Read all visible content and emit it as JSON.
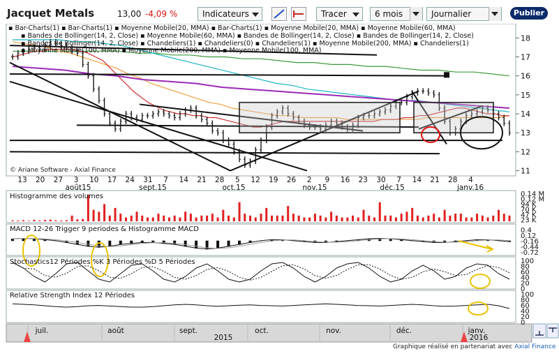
{
  "header": {
    "title": "Jacquet Metals",
    "price": "13,00",
    "change": "-4,09 %",
    "indicators_label": "Indicateurs",
    "tracer_label": "Tracer",
    "period_value": "6 mois",
    "frequency_value": "Journalier",
    "publish_label": "Publier"
  },
  "legend": {
    "line1": [
      "Bar-Charts(1)",
      "Bar-Charts(1)",
      "Moyenne Mobile(20, MMA)",
      "Bar-Charts(1)",
      "Moyenne Mobile(20, MMA)",
      "Moyenne Mobile(60, MMA)"
    ],
    "line2": [
      "Bandes de Bollinger(14, 2, Close)",
      "Moyenne Mobile(60, MMA)",
      "Bandes de Bollinger(14, 2, Close)",
      "Bandes de Bollinger(14, 2, Close)"
    ],
    "line3": [
      "Bandes de Bollinger(14, 2, Close)",
      "Chandeliers(1)",
      "Chandeliers(0)",
      "Chandeliers(1)",
      "Moyenne Mobile(200, MMA)",
      "Chandeliers(1)"
    ],
    "line4": [
      "Moyenne Mobile(100, MMA)",
      "Moyenne Mobile(200, MMA)",
      "Moyenne Mobile(100, MMA)"
    ]
  },
  "copyright": "© Ariane Software - Axial Finance",
  "panels": {
    "volume": "Histogramme des volumes",
    "macd": "MACD 12-26   Trigger 9 periodes & Histogramme MACD",
    "stoch": "Stochastics12 Périodes   %K 3 Périodes   %D 5 Périodes",
    "rsi": "Relative Strength Index 12 Périodes"
  },
  "footer": {
    "text": "Graphique réalisé en partenariat avec ",
    "brand": "Axial Finance"
  },
  "chart_data": {
    "type": "bar",
    "price_axis": {
      "ylim": [
        10.8,
        18.6
      ],
      "ticks": [
        11,
        12,
        13,
        14,
        15,
        16,
        17,
        18
      ]
    },
    "x_day_labels": [
      "13",
      "20",
      "27",
      "3",
      "10",
      "17",
      "24",
      "31",
      "7",
      "14",
      "21",
      "28",
      "5",
      "12",
      "19",
      "26",
      "2",
      "9",
      "16",
      "23",
      "30",
      "7",
      "14",
      "21",
      "28",
      "4"
    ],
    "x_month_labels": [
      "août15",
      "sept.15",
      "oct.15",
      "nov.15",
      "déc.15",
      "janv.16"
    ],
    "volume_axis_labels": [
      "0.14 M",
      "0.12 M",
      "94 K",
      "70 K",
      "47 K",
      "23 K"
    ],
    "macd_axis_labels": [
      "0.4",
      "0.12",
      "-0.16",
      "-0.44",
      "-0.72"
    ],
    "stoch_axis_labels": [
      "100",
      "80",
      "60",
      "40",
      "20",
      "0"
    ],
    "rsi_axis_labels": [
      "100",
      "80",
      "60",
      "40",
      "20",
      "0"
    ],
    "navigator_months": [
      "juil.",
      "août",
      "sept.",
      "oct.",
      "nov.",
      "déc.",
      "janv."
    ],
    "navigator_year": "2015",
    "navigator_year_right": "2016",
    "close": [
      17.0,
      17.2,
      17.3,
      17.4,
      17.5,
      17.4,
      17.6,
      17.8,
      17.7,
      17.6,
      17.5,
      17.3,
      17.2,
      16.6,
      16.0,
      15.3,
      14.7,
      14.0,
      13.5,
      13.2,
      13.6,
      14.0,
      13.8,
      13.7,
      13.9,
      13.9,
      14.0,
      14.1,
      14.0,
      13.9,
      13.8,
      14.0,
      14.2,
      14.3,
      13.9,
      13.7,
      13.5,
      13.1,
      13.0,
      12.6,
      12.4,
      12.0,
      11.6,
      11.3,
      11.5,
      12.1,
      12.6,
      13.3,
      13.9,
      14.1,
      14.3,
      14.0,
      13.8,
      13.6,
      13.4,
      13.3,
      13.3,
      13.2,
      13.4,
      13.6,
      13.5,
      13.3,
      13.2,
      13.4,
      13.8,
      13.9,
      13.9,
      14.0,
      14.1,
      14.2,
      14.4,
      14.6,
      14.6,
      14.9,
      15.1,
      15.2,
      15.2,
      15.1,
      15.0,
      14.3,
      13.6,
      13.0,
      13.2,
      13.6,
      13.9,
      14.0,
      14.1,
      14.3,
      14.2,
      14.0,
      13.8,
      13.5,
      13.0
    ],
    "volume": [
      0.005,
      0.004,
      0.006,
      0.003,
      0.008,
      0.004,
      0.007,
      0.009,
      0.005,
      0.004,
      0.006,
      0.03,
      0.01,
      0.012,
      0.14,
      0.06,
      0.05,
      0.09,
      0.03,
      0.07,
      0.04,
      0.02,
      0.03,
      0.05,
      0.03,
      0.02,
      0.02,
      0.04,
      0.03,
      0.02,
      0.03,
      0.02,
      0.05,
      0.04,
      0.02,
      0.03,
      0.03,
      0.04,
      0.02,
      0.06,
      0.03,
      0.02,
      0.1,
      0.04,
      0.03,
      0.02,
      0.04,
      0.07,
      0.03,
      0.03,
      0.03,
      0.08,
      0.04,
      0.03,
      0.02,
      0.02,
      0.04,
      0.03,
      0.02,
      0.05,
      0.03,
      0.02,
      0.02,
      0.03,
      0.02,
      0.06,
      0.03,
      0.02,
      0.1,
      0.03,
      0.03,
      0.02,
      0.04,
      0.05,
      0.07,
      0.03,
      0.02,
      0.03,
      0.04,
      0.02,
      0.06,
      0.03,
      0.04,
      0.04,
      0.02,
      0.02,
      0.04,
      0.03,
      0.02,
      0.03,
      0.06,
      0.04,
      0.03
    ],
    "ma20": [
      17.0,
      17.1,
      17.2,
      17.3,
      17.3,
      17.4,
      17.4,
      17.4,
      17.4,
      17.3,
      17.2,
      17.0,
      16.8,
      16.4,
      16.0,
      15.6,
      15.2,
      14.9,
      14.6,
      14.4,
      14.2,
      14.1,
      14.0,
      14.0,
      13.9,
      13.9,
      13.8,
      13.8,
      13.7,
      13.6,
      13.5,
      13.4,
      13.3,
      13.3,
      13.4,
      13.5,
      13.6,
      13.6,
      13.6,
      13.6,
      13.6,
      13.6,
      13.6,
      13.6,
      13.6,
      13.6,
      13.6,
      13.6,
      13.6,
      13.7,
      13.7,
      13.7,
      13.8,
      13.8,
      13.9,
      13.9,
      14.0,
      14.1,
      14.2,
      14.3,
      14.3,
      14.2,
      14.1,
      14.0,
      14.0,
      13.9,
      13.9
    ],
    "ma60": [
      17.8,
      17.7,
      17.6,
      17.5,
      17.3,
      17.2,
      17.0,
      16.8,
      16.6,
      16.4,
      16.1,
      15.9,
      15.6,
      15.4,
      15.2,
      15.0,
      14.8,
      14.6,
      14.5,
      14.3,
      14.2,
      14.1,
      14.0,
      13.9,
      13.9,
      13.8,
      13.8,
      13.8,
      13.8,
      13.7,
      13.7,
      13.7,
      13.7,
      13.7,
      13.7,
      13.7,
      13.8,
      13.8,
      13.8,
      13.8,
      13.8,
      13.8,
      13.8,
      13.9
    ],
    "ma100": [
      17.9,
      17.9,
      17.9,
      17.9,
      17.8,
      17.8,
      17.7,
      17.6,
      17.4,
      17.2,
      17.0,
      16.8,
      16.6,
      16.4,
      16.2,
      16.0,
      15.8,
      15.6,
      15.5,
      15.3,
      15.2,
      15.1,
      15.0,
      14.9,
      14.8,
      14.7,
      14.7,
      14.6,
      14.5,
      14.4,
      14.3,
      14.2,
      14.1
    ],
    "ma200": [
      17.3,
      17.3,
      17.3,
      17.3,
      17.3,
      17.3,
      17.3,
      17.2,
      17.2,
      17.1,
      17.1,
      17.0,
      17.0,
      16.9,
      16.9,
      16.8,
      16.7,
      16.7,
      16.6,
      16.6,
      16.5,
      16.5,
      16.4,
      16.3,
      16.3,
      16.2,
      16.2,
      16.1,
      16.0
    ],
    "purple": [
      16.5,
      16.4,
      16.3,
      16.1,
      16.0,
      15.8,
      15.7,
      15.6,
      15.4,
      15.3,
      15.2,
      15.1,
      15.0,
      14.9,
      14.8,
      14.7,
      14.6,
      14.5,
      14.4,
      14.3
    ],
    "macd": [
      0.1,
      0.12,
      0.1,
      0.05,
      0.0,
      -0.1,
      -0.2,
      -0.3,
      -0.35,
      -0.3,
      -0.2,
      -0.15,
      -0.1,
      -0.1,
      -0.15,
      -0.2,
      -0.3,
      -0.4,
      -0.45,
      -0.4,
      -0.3,
      -0.2,
      -0.1,
      0.0,
      0.05,
      0.05,
      0.0,
      -0.05,
      -0.1,
      -0.1,
      -0.05,
      0.0,
      0.05,
      0.1,
      0.12,
      0.1,
      0.05,
      0.0,
      -0.05,
      -0.1,
      -0.1,
      -0.05,
      0.0,
      0.05,
      0.05,
      0.0,
      -0.05
    ],
    "stoch": [
      90,
      70,
      40,
      20,
      50,
      85,
      90,
      60,
      30,
      20,
      50,
      80,
      85,
      60,
      30,
      20,
      40,
      70,
      85,
      60,
      30,
      20,
      30,
      60,
      85,
      90,
      70,
      40,
      20,
      40,
      70,
      85,
      90,
      70,
      40,
      20,
      30,
      60,
      80,
      60,
      30,
      40,
      70,
      85,
      80,
      50,
      30
    ],
    "rsi": [
      62,
      60,
      58,
      55,
      52,
      50,
      52,
      55,
      56,
      54,
      52,
      50,
      50,
      52,
      55,
      58,
      60,
      58,
      55,
      53,
      55,
      57,
      58,
      56,
      55,
      54,
      56,
      58,
      60,
      62,
      60,
      58,
      56,
      55,
      54,
      56,
      58,
      60,
      58,
      55,
      53,
      54,
      56,
      58,
      60,
      55,
      45
    ]
  }
}
